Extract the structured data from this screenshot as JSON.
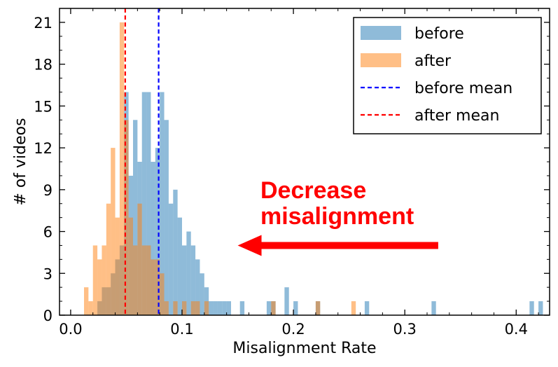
{
  "chart_data": {
    "type": "histogram",
    "xlabel": "Misalignment Rate",
    "ylabel": "# of videos",
    "xlim": [
      -0.01,
      0.43
    ],
    "ylim": [
      0,
      22
    ],
    "xticks": [
      0.0,
      0.1,
      0.2,
      0.3,
      0.4
    ],
    "xtick_labels": [
      "0.0",
      "0.1",
      "0.2",
      "0.3",
      "0.4"
    ],
    "yticks": [
      0,
      3,
      6,
      9,
      12,
      15,
      18,
      21
    ],
    "ytick_labels": [
      "0",
      "3",
      "6",
      "9",
      "12",
      "15",
      "18",
      "21"
    ],
    "bin_width": 0.004,
    "grid": false,
    "legend_position": "top-right",
    "series": [
      {
        "name": "before",
        "color": "#1f77b4",
        "alpha": 0.5,
        "bins": [
          [
            0.024,
            1
          ],
          [
            0.028,
            2
          ],
          [
            0.032,
            2
          ],
          [
            0.036,
            3
          ],
          [
            0.04,
            4
          ],
          [
            0.044,
            5
          ],
          [
            0.048,
            16
          ],
          [
            0.052,
            10
          ],
          [
            0.056,
            14
          ],
          [
            0.06,
            11
          ],
          [
            0.064,
            16
          ],
          [
            0.068,
            16
          ],
          [
            0.072,
            11
          ],
          [
            0.076,
            12
          ],
          [
            0.08,
            16
          ],
          [
            0.084,
            14
          ],
          [
            0.088,
            8
          ],
          [
            0.092,
            9
          ],
          [
            0.096,
            7
          ],
          [
            0.1,
            5
          ],
          [
            0.104,
            6
          ],
          [
            0.108,
            5
          ],
          [
            0.112,
            4
          ],
          [
            0.116,
            3
          ],
          [
            0.12,
            2
          ],
          [
            0.124,
            1
          ],
          [
            0.128,
            1
          ],
          [
            0.132,
            1
          ],
          [
            0.136,
            1
          ],
          [
            0.14,
            1
          ],
          [
            0.152,
            1
          ],
          [
            0.176,
            1
          ],
          [
            0.18,
            1
          ],
          [
            0.192,
            2
          ],
          [
            0.2,
            1
          ],
          [
            0.22,
            1
          ],
          [
            0.264,
            1
          ],
          [
            0.324,
            1
          ],
          [
            0.412,
            1
          ],
          [
            0.42,
            1
          ]
        ]
      },
      {
        "name": "after",
        "color": "#ff7f0e",
        "alpha": 0.5,
        "bins": [
          [
            0.012,
            2
          ],
          [
            0.016,
            1
          ],
          [
            0.02,
            5
          ],
          [
            0.024,
            4
          ],
          [
            0.028,
            5
          ],
          [
            0.032,
            8
          ],
          [
            0.036,
            12
          ],
          [
            0.04,
            7
          ],
          [
            0.044,
            21
          ],
          [
            0.048,
            14
          ],
          [
            0.052,
            7
          ],
          [
            0.056,
            5
          ],
          [
            0.06,
            8
          ],
          [
            0.064,
            5
          ],
          [
            0.068,
            5
          ],
          [
            0.072,
            4
          ],
          [
            0.076,
            4
          ],
          [
            0.08,
            3
          ],
          [
            0.084,
            1
          ],
          [
            0.092,
            1
          ],
          [
            0.1,
            1
          ],
          [
            0.108,
            1
          ],
          [
            0.112,
            1
          ],
          [
            0.12,
            1
          ],
          [
            0.18,
            1
          ],
          [
            0.22,
            1
          ],
          [
            0.252,
            1
          ]
        ]
      }
    ],
    "vlines": [
      {
        "name": "before mean",
        "x": 0.079,
        "color": "#0000ff",
        "style": "dashed"
      },
      {
        "name": "after mean",
        "x": 0.049,
        "color": "#ff0000",
        "style": "dashed"
      }
    ],
    "legend": [
      {
        "label": "before",
        "kind": "patch",
        "color": "#1f77b4"
      },
      {
        "label": "after",
        "kind": "patch",
        "color": "#ff7f0e"
      },
      {
        "label": "before mean",
        "kind": "dashed-line",
        "color": "#0000ff"
      },
      {
        "label": "after mean",
        "kind": "dashed-line",
        "color": "#ff0000"
      }
    ],
    "annotation": {
      "lines": [
        "Decrease",
        "misalignment"
      ],
      "color": "#ff0000",
      "arrow": {
        "from_x": 0.33,
        "to_x": 0.15,
        "y": 5
      }
    }
  }
}
